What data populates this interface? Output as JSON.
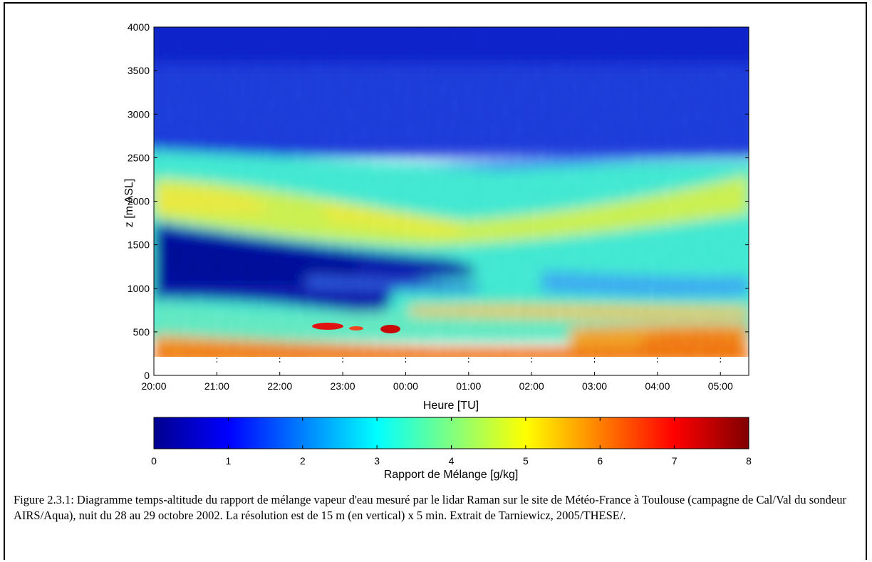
{
  "caption": "Figure 2.3.1: Diagramme temps-altitude du rapport de mélange vapeur d'eau mesuré par le lidar Raman sur le site de Météo-France à Toulouse (campagne de Cal/Val du sondeur AIRS/Aqua), nuit du 28 au 29 octobre 2002. La résolution est de 15 m (en vertical) x 5 min. Extrait de Tarniewicz, 2005/THESE/.",
  "chart_data": {
    "type": "heatmap",
    "title": "",
    "xlabel": "Heure [TU]",
    "ylabel": "z [m ASL]",
    "x_ticks": [
      "20:00",
      "21:00",
      "22:00",
      "23:00",
      "00:00",
      "01:00",
      "02:00",
      "03:00",
      "04:00",
      "05:00"
    ],
    "x_range_hours": [
      20.0,
      29.45
    ],
    "y_ticks": [
      0,
      500,
      1000,
      1500,
      2000,
      2500,
      3000,
      3500,
      4000
    ],
    "ylim": [
      0,
      4000
    ],
    "data_floor_m": 200,
    "colorbar": {
      "label": "Rapport de Mélange [g/kg]",
      "ticks": [
        0,
        1,
        2,
        3,
        4,
        5,
        6,
        7,
        8
      ],
      "range": [
        0,
        8
      ],
      "colormap": "jet"
    },
    "grid": false,
    "colors": {
      "low": "#00008f",
      "mid": "#80ff80",
      "high": "#800000"
    },
    "layers_g_per_kg": [
      {
        "name": "upper_dry",
        "z_range": [
          2500,
          4000
        ],
        "value": 1.0
      },
      {
        "name": "moist_layer",
        "z_range": [
          1700,
          2500
        ],
        "value": 4.2
      },
      {
        "name": "dry_intrusion",
        "z_range": [
          850,
          1800
        ],
        "hours": [
          20.0,
          24.0
        ],
        "value": 0.4
      },
      {
        "name": "boundary_layer",
        "z_range": [
          200,
          800
        ],
        "value": 3.5
      },
      {
        "name": "surface",
        "z_range": [
          200,
          350
        ],
        "value": 6.0
      }
    ]
  }
}
